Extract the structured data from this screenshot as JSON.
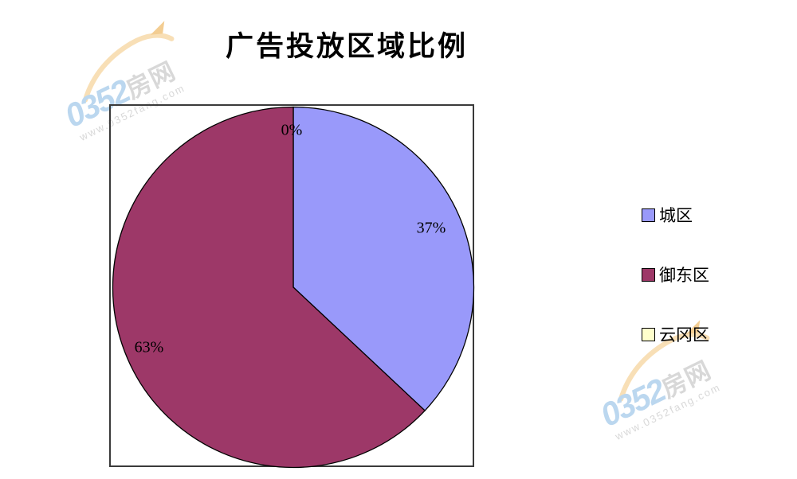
{
  "title": "广告投放区域比例",
  "chart_data": {
    "type": "pie",
    "title": "广告投放区域比例",
    "categories": [
      "城区",
      "御东区",
      "云冈区"
    ],
    "values": [
      37,
      63,
      0
    ],
    "unit": "percent",
    "data_labels": [
      "37%",
      "63%",
      "0%"
    ],
    "colors": [
      "#9999FA",
      "#9D3868",
      "#FFFFCC"
    ],
    "stroke_color": "#000000",
    "start_angle_deg": 0,
    "direction": "clockwise",
    "legend_position": "right",
    "plot_border_color": "#3a3a3a"
  },
  "legend": {
    "items": [
      {
        "label": "城区",
        "color": "#9999FA"
      },
      {
        "label": "御东区",
        "color": "#9D3868"
      },
      {
        "label": "云冈区",
        "color": "#FFFFCC"
      }
    ]
  },
  "watermark": {
    "brand_number": "0352",
    "brand_name": "房网",
    "url": "www.0352fang.com",
    "colors": {
      "number": "#BBD7EF",
      "name": "#D8D8D8",
      "url": "#D8D8D8",
      "swoosh": "#F8DFB6",
      "swoosh_accent": "#F3CD92"
    }
  }
}
